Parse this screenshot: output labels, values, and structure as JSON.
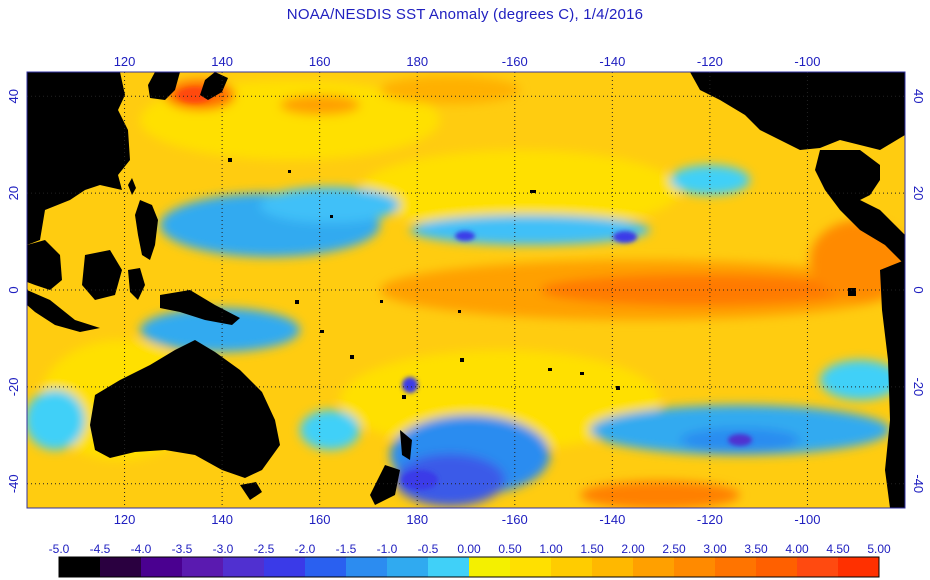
{
  "title": "NOAA/NESDIS SST Anomaly (degrees C), 1/4/2016",
  "axes": {
    "lon_ticks": [
      "120",
      "140",
      "160",
      "180",
      "-160",
      "-140",
      "-120",
      "-100"
    ],
    "lon_values": [
      120,
      140,
      160,
      180,
      200,
      220,
      240,
      260
    ],
    "lon_range": [
      100,
      280
    ],
    "lat_ticks": [
      "40",
      "20",
      "0",
      "-20",
      "-40"
    ],
    "lat_values": [
      40,
      20,
      0,
      -20,
      -40
    ],
    "lat_range": [
      -45,
      45
    ]
  },
  "colorbar": {
    "labels": [
      "-5.0",
      "-4.5",
      "-4.0",
      "-3.5",
      "-3.0",
      "-2.5",
      "-2.0",
      "-1.5",
      "-1.0",
      "-0.5",
      "0.00",
      "0.50",
      "1.00",
      "1.50",
      "2.00",
      "2.50",
      "3.00",
      "3.50",
      "4.00",
      "4.50",
      "5.00"
    ],
    "colors": [
      "#000000",
      "#2a0040",
      "#4a0090",
      "#5a1ab0",
      "#5030d0",
      "#3a3ae8",
      "#2a60f0",
      "#2c8cf0",
      "#30aaf0",
      "#40d0f8",
      "#f4f000",
      "#ffe000",
      "#ffcc00",
      "#ffb800",
      "#ffa000",
      "#ff8a00",
      "#ff7400",
      "#ff6000",
      "#ff4a10",
      "#ff3000"
    ]
  },
  "colors": {
    "ocean": "#ffcc10",
    "land": "#000000",
    "grid": "#222222",
    "text": "#2020c0"
  }
}
